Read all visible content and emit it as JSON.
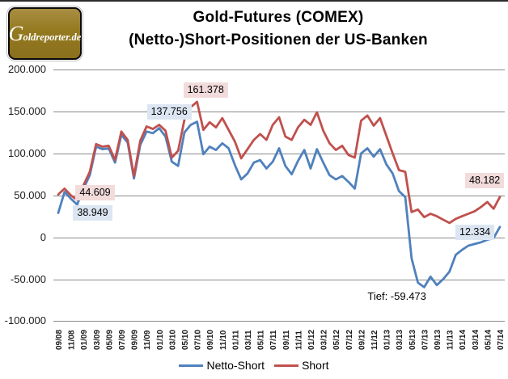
{
  "logo": {
    "g": "G",
    "rest": "oldreporter.de"
  },
  "title": {
    "line1": "Gold-Futures (COMEX)",
    "line2": "(Netto-)Short-Positionen der US-Banken"
  },
  "colors": {
    "netto_short_line": "#4F81BD",
    "short_line": "#C0504D",
    "netto_label_bg": "#DCE6F2",
    "short_label_bg": "#F2DCDB",
    "gridline": "#8a8a8a",
    "text": "#1a1a1a"
  },
  "chart_data": {
    "type": "line",
    "title": "Gold-Futures (COMEX) (Netto-)Short-Positionen der US-Banken",
    "grid": true,
    "legend_position": "bottom",
    "x_tick_labels": [
      "09/08",
      "11/08",
      "01/09",
      "03/09",
      "05/09",
      "07/09",
      "09/09",
      "11/09",
      "01/10",
      "03/10",
      "05/10",
      "07/10",
      "09/10",
      "11/10",
      "01/11",
      "03/11",
      "05/11",
      "07/11",
      "09/11",
      "11/11",
      "01/12",
      "03/12",
      "05/12",
      "07/12",
      "09/12",
      "11/12",
      "01/13",
      "03/13",
      "05/13",
      "07/13",
      "09/13",
      "11/13",
      "01/14",
      "03/14",
      "05/14",
      "07/14"
    ],
    "months_per_tick": 2,
    "y_axis": {
      "labels": [
        "200.000",
        "150.000",
        "100.000",
        "50.000",
        "0",
        "-50.000",
        "-100.000"
      ],
      "values": [
        200000,
        150000,
        100000,
        50000,
        0,
        -50000,
        -100000
      ],
      "min": -100000,
      "max": 200000
    },
    "series": [
      {
        "name": "Netto-Short",
        "color": "#4F81BD",
        "label_bg": "#DCE6F2",
        "values": [
          29000,
          54000,
          46000,
          38949,
          58000,
          74000,
          108000,
          105000,
          106000,
          89000,
          122000,
          113000,
          70000,
          110000,
          126000,
          124000,
          130000,
          120000,
          90000,
          85000,
          125000,
          134000,
          137756,
          99000,
          108000,
          104000,
          112000,
          106000,
          86000,
          69000,
          76000,
          89000,
          92000,
          82000,
          90000,
          106000,
          85000,
          75000,
          91000,
          104000,
          82000,
          105000,
          89000,
          74000,
          69000,
          73000,
          66000,
          58000,
          100000,
          106000,
          96000,
          105000,
          87000,
          76000,
          55000,
          48000,
          -25000,
          -54000,
          -59473,
          -47000,
          -57000,
          -50000,
          -41000,
          -21000,
          -15000,
          -10000,
          -8000,
          -6000,
          -3000,
          -1000,
          12334
        ]
      },
      {
        "name": "Short",
        "color": "#C0504D",
        "label_bg": "#F2DCDB",
        "values": [
          51000,
          58000,
          50000,
          44609,
          62000,
          78000,
          111000,
          108000,
          109000,
          92000,
          126000,
          116000,
          73000,
          115000,
          132000,
          129000,
          134000,
          127000,
          95000,
          103000,
          140000,
          155000,
          161378,
          128000,
          137000,
          131000,
          142000,
          128000,
          114000,
          94000,
          105000,
          116000,
          123000,
          116000,
          134000,
          143000,
          120000,
          116000,
          131000,
          140000,
          134000,
          149000,
          127000,
          112000,
          104000,
          109000,
          98000,
          95000,
          139000,
          145000,
          133000,
          142000,
          121000,
          100000,
          80000,
          78000,
          30000,
          33000,
          24000,
          28000,
          25000,
          21000,
          17000,
          22000,
          25000,
          28000,
          31000,
          36000,
          42000,
          34000,
          48182
        ]
      }
    ],
    "point_labels": [
      {
        "id": "netto-dec08",
        "text": "38.949",
        "series": 0,
        "month_index": 3
      },
      {
        "id": "short-dec08",
        "text": "44.609",
        "series": 1,
        "month_index": 3
      },
      {
        "id": "netto-peak",
        "text": "137.756",
        "series": 0,
        "month_index": 22
      },
      {
        "id": "short-peak",
        "text": "161.378",
        "series": 1,
        "month_index": 22
      },
      {
        "id": "netto-last",
        "text": "12.334",
        "series": 0,
        "month_index": 70
      },
      {
        "id": "short-last",
        "text": "48.182",
        "series": 1,
        "month_index": 70
      }
    ],
    "annotation": {
      "text": "Tief: -59.473",
      "month_index": 58,
      "value": -59473
    }
  }
}
